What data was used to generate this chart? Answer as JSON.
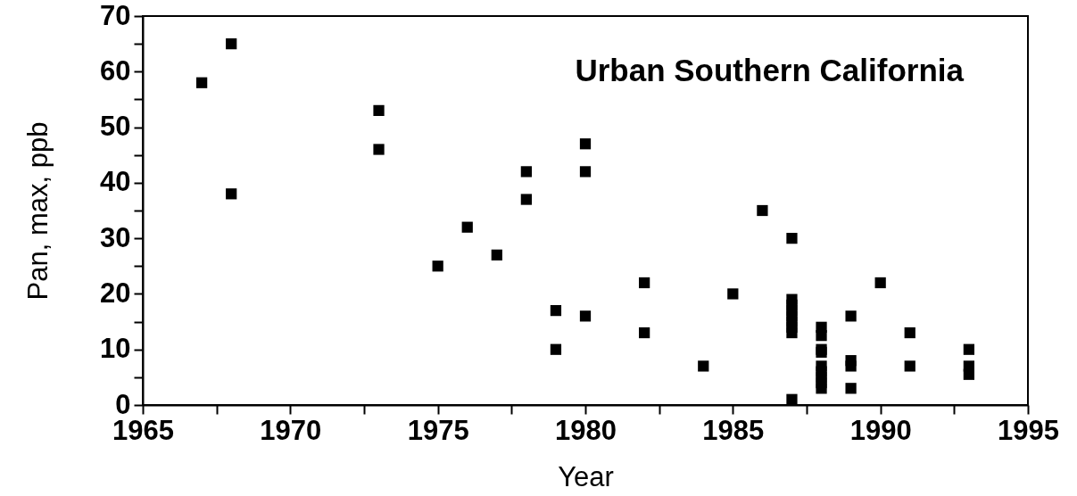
{
  "chart_data": {
    "type": "scatter",
    "xlabel": "Year",
    "ylabel": "Pan, max, ppb",
    "annotations": [
      "Urban Southern California"
    ],
    "x": [
      1967,
      1968,
      1968,
      1973,
      1973,
      1975,
      1976,
      1977,
      1978,
      1978,
      1979,
      1979,
      1980,
      1980,
      1980,
      1982,
      1982,
      1984,
      1985,
      1986,
      1987,
      1987,
      1987,
      1987,
      1987,
      1987,
      1987,
      1987,
      1987,
      1988,
      1988,
      1988,
      1988,
      1988,
      1988,
      1988,
      1988,
      1988,
      1989,
      1989,
      1989,
      1989,
      1990,
      1991,
      1991,
      1993,
      1993,
      1993
    ],
    "values": [
      58,
      65,
      38,
      53,
      46,
      25,
      32,
      27,
      42,
      37,
      17,
      10,
      47,
      42,
      16,
      22,
      13,
      7,
      20,
      35,
      30,
      19,
      18,
      17,
      16,
      15,
      14,
      13,
      1,
      14,
      12.5,
      10,
      9.5,
      7,
      6,
      5,
      4,
      3,
      16,
      8,
      7,
      3,
      22,
      13,
      7,
      10,
      7,
      5.5
    ],
    "color": "#000000",
    "marker": "square",
    "xlim": [
      1965,
      1995
    ],
    "xticks": [
      1965,
      {
        "value": 1967.5,
        "label": null
      },
      1970,
      {
        "value": 1972.5,
        "label": null
      },
      1975,
      {
        "value": 1977.5,
        "label": null
      },
      1980,
      {
        "value": 1982.5,
        "label": null
      },
      1985,
      {
        "value": 1987.5,
        "label": null
      },
      1990,
      {
        "value": 1992.5,
        "label": null
      },
      1995
    ],
    "ylim": [
      0,
      70
    ],
    "yticks": [
      0,
      {
        "value": 5,
        "label": null
      },
      10,
      {
        "value": 15,
        "label": null
      },
      20,
      {
        "value": 25,
        "label": null
      },
      30,
      {
        "value": 35,
        "label": null
      },
      40,
      {
        "value": 45,
        "label": null
      },
      50,
      {
        "value": 55,
        "label": null
      },
      60,
      {
        "value": 65,
        "label": null
      },
      70
    ]
  }
}
